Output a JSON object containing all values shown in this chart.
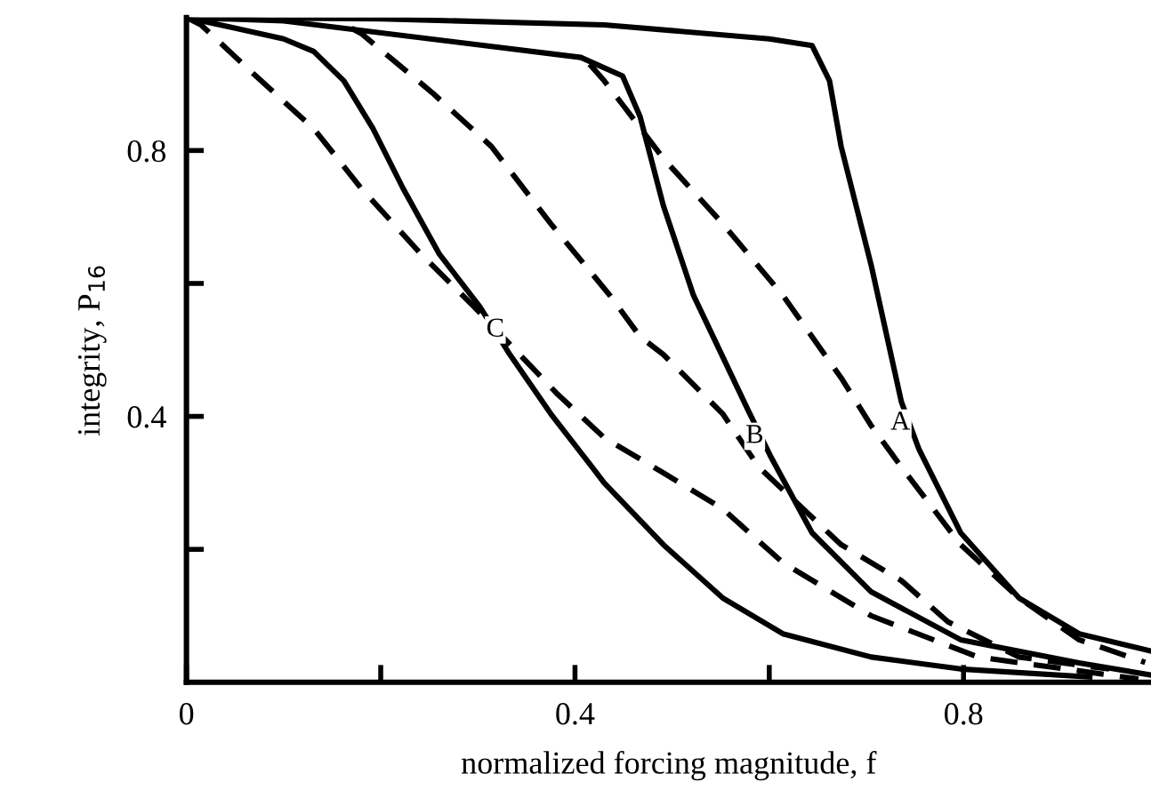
{
  "chart_data": {
    "type": "line",
    "xlabel": "normalized forcing magnitude, f",
    "ylabel": "integrity, P$_{16}$",
    "xlim": [
      0,
      0.993
    ],
    "ylim": [
      0,
      1.0
    ],
    "xticks": [
      0,
      {
        "value": 0.2,
        "label": null
      },
      0.4,
      {
        "value": 0.6,
        "label": null
      },
      0.8
    ],
    "yticks": [
      {
        "value": 0.2,
        "label": null
      },
      0.4,
      {
        "value": 0.6,
        "label": null
      },
      0.8
    ],
    "grid": false,
    "legend": false,
    "marker": "none",
    "series": [
      {
        "color": "#000000",
        "line_style": "solid",
        "x": [
          0,
          0.2,
          0.43,
          0.6,
          0.644,
          0.662,
          0.674,
          0.705,
          0.736,
          0.754,
          0.797,
          0.857,
          0.919,
          0.993
        ],
        "values": [
          1.0,
          0.998,
          0.989,
          0.968,
          0.958,
          0.905,
          0.806,
          0.627,
          0.422,
          0.351,
          0.225,
          0.127,
          0.073,
          0.047
        ]
      },
      {
        "color": "#000000",
        "line_style": "solid",
        "x": [
          0,
          0.1,
          0.406,
          0.449,
          0.467,
          0.491,
          0.522,
          0.577,
          0.601,
          0.644,
          0.705,
          0.797,
          0.919,
          0.993
        ],
        "values": [
          1.0,
          0.995,
          0.94,
          0.912,
          0.851,
          0.717,
          0.582,
          0.413,
          0.341,
          0.225,
          0.136,
          0.064,
          0.029,
          0.011
        ]
      },
      {
        "color": "#000000",
        "line_style": "solid",
        "x": [
          0,
          0.1,
          0.131,
          0.162,
          0.192,
          0.223,
          0.26,
          0.302,
          0.333,
          0.375,
          0.418,
          0.43,
          0.491,
          0.552,
          0.614,
          0.705,
          0.797,
          0.93
        ],
        "values": [
          1.0,
          0.968,
          0.949,
          0.905,
          0.833,
          0.743,
          0.645,
          0.565,
          0.493,
          0.404,
          0.323,
          0.3,
          0.207,
          0.127,
          0.073,
          0.038,
          0.02,
          0.008
        ]
      },
      {
        "color": "#000000",
        "line_style": "dashed",
        "x": [
          0.415,
          0.43,
          0.449,
          0.491,
          0.552,
          0.614,
          0.674,
          0.705,
          0.736,
          0.797,
          0.857,
          0.919,
          0.987
        ],
        "values": [
          0.93,
          0.905,
          0.869,
          0.788,
          0.69,
          0.582,
          0.458,
          0.386,
          0.324,
          0.207,
          0.127,
          0.064,
          0.03
        ]
      },
      {
        "color": "#000000",
        "line_style": "dashed",
        "x": [
          0.17,
          0.18,
          0.253,
          0.314,
          0.375,
          0.436,
          0.467,
          0.491,
          0.552,
          0.589,
          0.674,
          0.736,
          0.784,
          0.857,
          0.95
        ],
        "values": [
          0.984,
          0.976,
          0.887,
          0.806,
          0.69,
          0.582,
          0.52,
          0.493,
          0.404,
          0.324,
          0.207,
          0.153,
          0.091,
          0.038,
          0.02
        ]
      },
      {
        "color": "#000000",
        "line_style": "dashed",
        "x": [
          0,
          0.015,
          0.07,
          0.131,
          0.18,
          0.241,
          0.296,
          0.381,
          0.43,
          0.491,
          0.552,
          0.614,
          0.705,
          0.815,
          0.98
        ],
        "values": [
          1.0,
          0.989,
          0.914,
          0.833,
          0.743,
          0.645,
          0.565,
          0.435,
          0.368,
          0.315,
          0.261,
          0.18,
          0.1,
          0.038,
          0.005
        ]
      }
    ],
    "annotations": [
      {
        "text": "A",
        "x": 0.735,
        "y": 0.39
      },
      {
        "text": "B",
        "x": 0.585,
        "y": 0.37
      },
      {
        "text": "C",
        "x": 0.318,
        "y": 0.53
      }
    ]
  }
}
